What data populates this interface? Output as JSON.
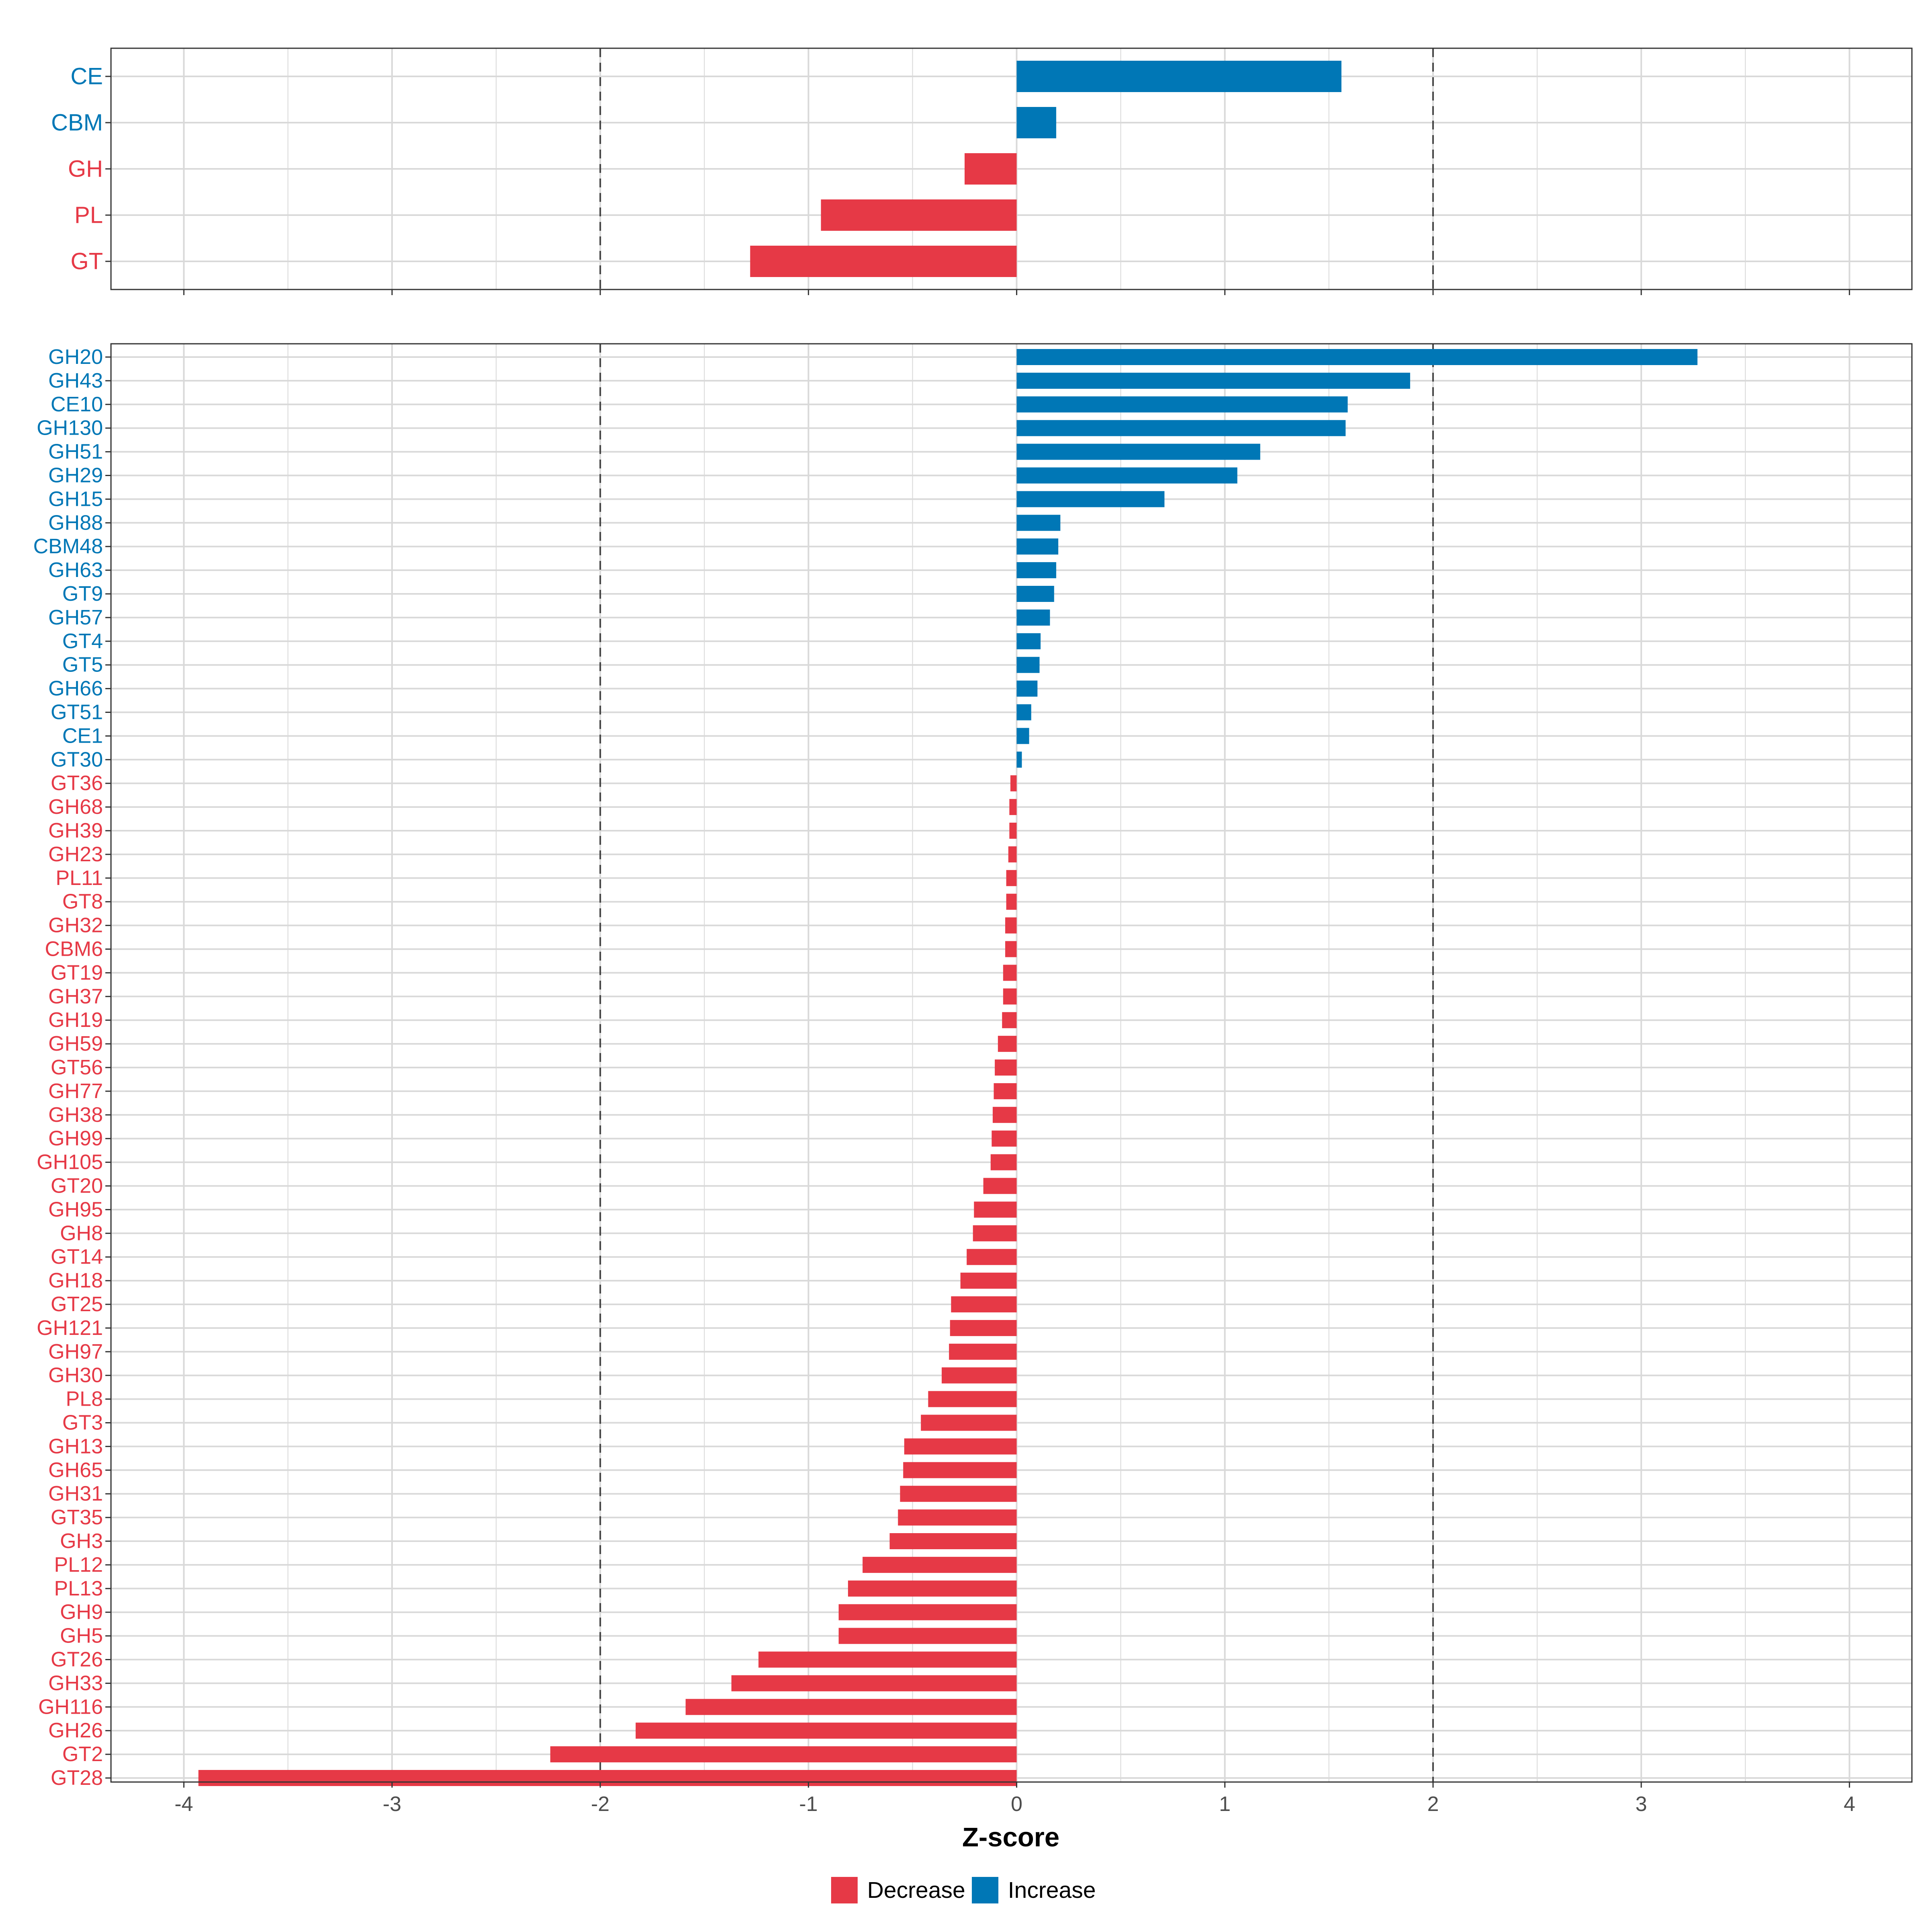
{
  "chart_data": [
    {
      "type": "bar",
      "orientation": "horizontal",
      "panel": "top",
      "categories": [
        "CE",
        "CBM",
        "GH",
        "PL",
        "GT"
      ],
      "values": [
        1.56,
        0.19,
        -0.25,
        -0.94,
        -1.28
      ],
      "xlim": [
        -4.35,
        4.3
      ],
      "x_ticks": [
        -4,
        -3,
        -2,
        -1,
        0,
        1,
        2,
        3,
        4
      ],
      "reference_lines": [
        -2,
        2
      ],
      "grid": true
    },
    {
      "type": "bar",
      "orientation": "horizontal",
      "panel": "bottom",
      "categories": [
        "GH20",
        "GH43",
        "CE10",
        "GH130",
        "GH51",
        "GH29",
        "GH15",
        "GH88",
        "CBM48",
        "GH63",
        "GT9",
        "GH57",
        "GT4",
        "GT5",
        "GH66",
        "GT51",
        "CE1",
        "GT30",
        "GT36",
        "GH68",
        "GH39",
        "GH23",
        "PL11",
        "GT8",
        "GH32",
        "CBM6",
        "GT19",
        "GH37",
        "GH19",
        "GH59",
        "GT56",
        "GH77",
        "GH38",
        "GH99",
        "GH105",
        "GT20",
        "GH95",
        "GH8",
        "GT14",
        "GH18",
        "GT25",
        "GH121",
        "GH97",
        "GH30",
        "PL8",
        "GT3",
        "GH13",
        "GH65",
        "GH31",
        "GT35",
        "GH3",
        "PL12",
        "PL13",
        "GH9",
        "GH5",
        "GT26",
        "GH33",
        "GH116",
        "GH26",
        "GT2",
        "GT28"
      ],
      "values": [
        3.27,
        1.89,
        1.59,
        1.58,
        1.17,
        1.06,
        0.71,
        0.21,
        0.2,
        0.19,
        0.18,
        0.16,
        0.115,
        0.11,
        0.1,
        0.07,
        0.06,
        0.025,
        -0.03,
        -0.035,
        -0.035,
        -0.04,
        -0.05,
        -0.05,
        -0.055,
        -0.055,
        -0.065,
        -0.065,
        -0.07,
        -0.09,
        -0.105,
        -0.11,
        -0.115,
        -0.12,
        -0.125,
        -0.16,
        -0.205,
        -0.21,
        -0.24,
        -0.27,
        -0.315,
        -0.32,
        -0.325,
        -0.36,
        -0.425,
        -0.46,
        -0.54,
        -0.545,
        -0.56,
        -0.57,
        -0.61,
        -0.74,
        -0.81,
        -0.855,
        -0.855,
        -1.24,
        -1.37,
        -1.59,
        -1.83,
        -2.24,
        -3.93
      ],
      "xlim": [
        -4.35,
        4.3
      ],
      "x_ticks": [
        -4,
        -3,
        -2,
        -1,
        0,
        1,
        2,
        3,
        4
      ],
      "reference_lines": [
        -2,
        2
      ],
      "grid": true,
      "xlabel": "Z-score"
    }
  ],
  "legend": {
    "position": "bottom-center",
    "items": [
      {
        "label": "Decrease",
        "color": "#E63946"
      },
      {
        "label": "Increase",
        "color": "#0077B6"
      }
    ]
  },
  "colors": {
    "decrease": "#E63946",
    "increase": "#0077B6",
    "grid": "#D9D9D9",
    "panel_border": "#333333",
    "reference_line": "#444444"
  }
}
